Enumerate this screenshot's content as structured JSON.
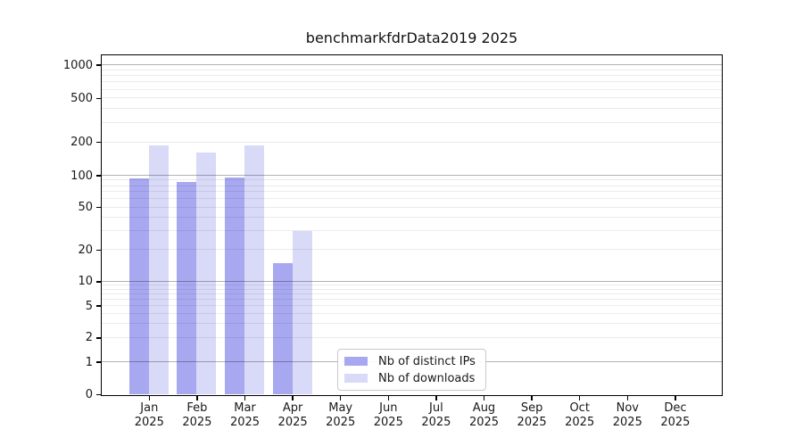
{
  "title": "benchmarkfdrData2019 2025",
  "chart_data": {
    "type": "bar",
    "title": "benchmarkfdrData2019 2025",
    "categories": [
      {
        "month": "Jan",
        "year": "2025"
      },
      {
        "month": "Feb",
        "year": "2025"
      },
      {
        "month": "Mar",
        "year": "2025"
      },
      {
        "month": "Apr",
        "year": "2025"
      },
      {
        "month": "May",
        "year": "2025"
      },
      {
        "month": "Jun",
        "year": "2025"
      },
      {
        "month": "Jul",
        "year": "2025"
      },
      {
        "month": "Aug",
        "year": "2025"
      },
      {
        "month": "Sep",
        "year": "2025"
      },
      {
        "month": "Oct",
        "year": "2025"
      },
      {
        "month": "Nov",
        "year": "2025"
      },
      {
        "month": "Dec",
        "year": "2025"
      }
    ],
    "series": [
      {
        "name": "Nb of distinct IPs",
        "color": "#a8a8f0",
        "values": [
          94,
          87,
          96,
          15,
          0,
          0,
          0,
          0,
          0,
          0,
          0,
          0
        ]
      },
      {
        "name": "Nb of downloads",
        "color": "#d9d9f8",
        "values": [
          185,
          160,
          188,
          30,
          0,
          0,
          0,
          0,
          0,
          0,
          0,
          0
        ]
      }
    ],
    "xlabel": "",
    "ylabel": "",
    "y_scale": "symlog (linear 0-1, log 1-1000)",
    "y_ticks": [
      0,
      1,
      2,
      5,
      10,
      20,
      50,
      100,
      200,
      500,
      1000
    ],
    "y_major_gridlines": [
      1,
      10,
      100,
      1000
    ],
    "y_minor_decade_bases": [
      1,
      10,
      100
    ],
    "ylim": [
      0,
      1250
    ],
    "grid": {
      "horizontal": true,
      "minor_log_subdivisions": true,
      "drawn_above_bars": true
    },
    "legend_position": "inside lower-center",
    "scale_anchors": {
      "values": [
        0,
        1,
        10,
        100,
        1000
      ],
      "fractions": [
        1.0,
        0.904,
        0.667,
        0.354,
        0.028
      ]
    }
  },
  "colors": {
    "bar_distinct_ips": "#a8a8f0",
    "bar_downloads": "#d9d9f8",
    "grid_major": "#b3b3b3",
    "grid_minor": "#ebebeb",
    "axis": "#000000",
    "text": "#191919",
    "legend_border": "#c9c9c9",
    "background": "#ffffff"
  }
}
